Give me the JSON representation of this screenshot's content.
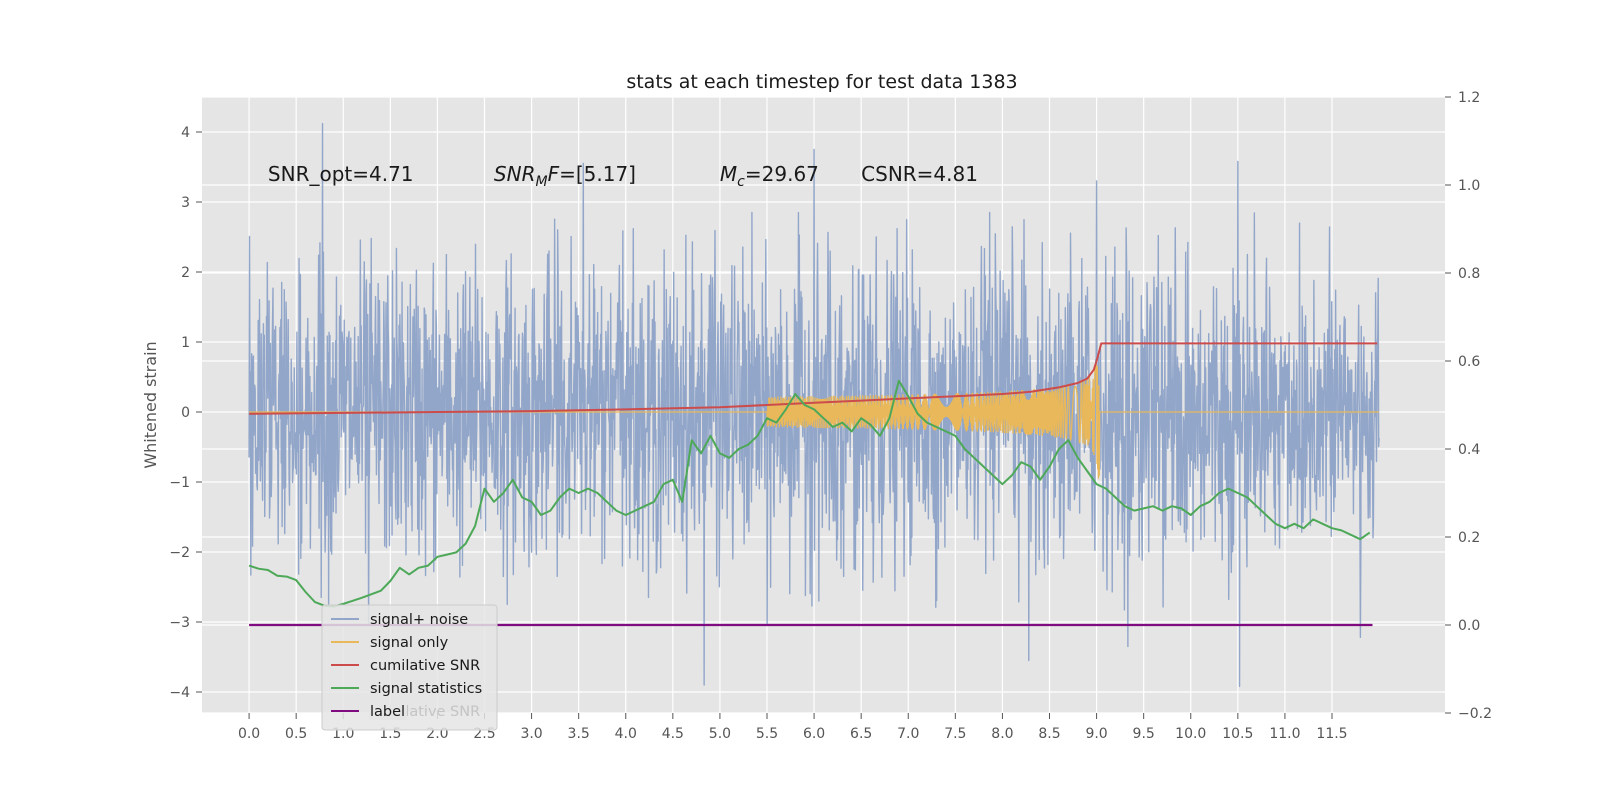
{
  "chart_data": {
    "type": "line",
    "title": "stats at each timestep for test data 1383",
    "ylabel": "Whitened strain",
    "xlabel": "",
    "xlim": [
      -0.5,
      12.7
    ],
    "ylim": [
      -4.3,
      4.5
    ],
    "y2lim": [
      -0.2,
      1.2
    ],
    "x_ticks": [
      "0.0",
      "0.5",
      "1.0",
      "1.5",
      "2.0",
      "2.5",
      "3.0",
      "3.5",
      "4.0",
      "4.5",
      "5.0",
      "5.5",
      "6.0",
      "6.5",
      "7.0",
      "7.5",
      "8.0",
      "8.5",
      "9.0",
      "9.5",
      "10.0",
      "10.5",
      "11.0",
      "11.5"
    ],
    "y_ticks": [
      "−4",
      "−3",
      "−2",
      "−1",
      "0",
      "1",
      "2",
      "3",
      "4"
    ],
    "y2_ticks": [
      "−0.2",
      "0.0",
      "0.2",
      "0.4",
      "0.6",
      "0.8",
      "1.0",
      "1.2"
    ],
    "grid": true,
    "legend_position": "lower-left",
    "annotations": [
      {
        "text": "SNR_opt=4.71",
        "x": 0.2,
        "y": 3.3
      },
      {
        "text": "SNR",
        "sub": "M",
        "rest": "F=[5.17]",
        "x": 2.6,
        "y": 3.3,
        "italic_base": true
      },
      {
        "text": "M",
        "sub": "c",
        "rest": "=29.67",
        "x": 5.0,
        "y": 3.3,
        "italic_base": true
      },
      {
        "text": "CSNR=4.81",
        "x": 6.5,
        "y": 3.3
      }
    ],
    "series": [
      {
        "name": "signal+ noise",
        "color": "#92a6ca",
        "axis": "left",
        "duration": 12.0,
        "noise_std": 1.0,
        "spikes": [
          [
            0.78,
            4.12
          ],
          [
            3.55,
            3.55
          ],
          [
            9.0,
            3.3
          ],
          [
            10.5,
            3.58
          ],
          [
            4.83,
            -3.9
          ],
          [
            10.52,
            -3.92
          ],
          [
            8.28,
            -3.55
          ],
          [
            9.33,
            -3.35
          ],
          [
            1.27,
            -3.05
          ],
          [
            5.5,
            -3.05
          ],
          [
            11.8,
            -3.22
          ],
          [
            6.0,
            3.75
          ]
        ]
      },
      {
        "name": "signal only",
        "color": "#e8b85a",
        "axis": "left",
        "chirp_end": 9.03,
        "peak_amplitude": 1.2
      },
      {
        "name": "cumilative SNR",
        "color": "#cc4b4b",
        "axis": "right",
        "x": [
          0.0,
          1.0,
          2.0,
          3.0,
          4.0,
          5.0,
          5.5,
          6.0,
          6.5,
          7.0,
          7.5,
          8.0,
          8.3,
          8.6,
          8.8,
          8.9,
          8.97,
          9.0,
          9.05,
          11.98
        ],
        "values": [
          0.48,
          0.482,
          0.484,
          0.486,
          0.49,
          0.495,
          0.5,
          0.505,
          0.51,
          0.515,
          0.52,
          0.525,
          0.53,
          0.54,
          0.55,
          0.56,
          0.58,
          0.6,
          0.64,
          0.64
        ]
      },
      {
        "name": "signal statistics",
        "color": "#4da858",
        "axis": "right",
        "x": [
          0.0,
          0.1,
          0.2,
          0.3,
          0.4,
          0.5,
          0.6,
          0.7,
          0.8,
          0.9,
          1.0,
          1.1,
          1.2,
          1.3,
          1.4,
          1.5,
          1.6,
          1.7,
          1.8,
          1.9,
          2.0,
          2.1,
          2.2,
          2.3,
          2.4,
          2.5,
          2.6,
          2.7,
          2.8,
          2.9,
          3.0,
          3.1,
          3.2,
          3.3,
          3.4,
          3.5,
          3.6,
          3.7,
          3.8,
          3.9,
          4.0,
          4.1,
          4.2,
          4.3,
          4.4,
          4.5,
          4.6,
          4.7,
          4.8,
          4.9,
          5.0,
          5.1,
          5.2,
          5.3,
          5.4,
          5.5,
          5.6,
          5.7,
          5.8,
          5.9,
          6.0,
          6.1,
          6.2,
          6.3,
          6.4,
          6.5,
          6.6,
          6.7,
          6.8,
          6.9,
          7.0,
          7.1,
          7.2,
          7.3,
          7.4,
          7.5,
          7.6,
          7.7,
          7.8,
          7.9,
          8.0,
          8.1,
          8.2,
          8.3,
          8.4,
          8.5,
          8.6,
          8.7,
          8.8,
          8.9,
          9.0,
          9.1,
          9.2,
          9.3,
          9.4,
          9.5,
          9.6,
          9.7,
          9.8,
          9.9,
          10.0,
          10.1,
          10.2,
          10.3,
          10.4,
          10.5,
          10.6,
          10.7,
          10.8,
          10.9,
          11.0,
          11.1,
          11.2,
          11.3,
          11.4,
          11.5,
          11.6,
          11.7,
          11.8,
          11.9
        ],
        "values": [
          0.135,
          0.128,
          0.125,
          0.112,
          0.11,
          0.102,
          0.075,
          0.052,
          0.044,
          0.042,
          0.048,
          0.055,
          0.062,
          0.07,
          0.078,
          0.1,
          0.13,
          0.115,
          0.13,
          0.135,
          0.155,
          0.16,
          0.165,
          0.185,
          0.225,
          0.31,
          0.28,
          0.3,
          0.33,
          0.29,
          0.28,
          0.25,
          0.26,
          0.29,
          0.31,
          0.3,
          0.31,
          0.3,
          0.28,
          0.26,
          0.25,
          0.26,
          0.27,
          0.28,
          0.32,
          0.33,
          0.28,
          0.42,
          0.39,
          0.43,
          0.39,
          0.38,
          0.4,
          0.41,
          0.43,
          0.47,
          0.46,
          0.49,
          0.525,
          0.5,
          0.49,
          0.47,
          0.45,
          0.46,
          0.44,
          0.47,
          0.455,
          0.43,
          0.47,
          0.555,
          0.52,
          0.48,
          0.46,
          0.45,
          0.44,
          0.43,
          0.4,
          0.38,
          0.36,
          0.34,
          0.32,
          0.34,
          0.37,
          0.36,
          0.33,
          0.36,
          0.4,
          0.42,
          0.38,
          0.35,
          0.32,
          0.31,
          0.29,
          0.27,
          0.26,
          0.265,
          0.27,
          0.26,
          0.27,
          0.265,
          0.25,
          0.27,
          0.28,
          0.3,
          0.31,
          0.3,
          0.29,
          0.27,
          0.25,
          0.23,
          0.22,
          0.23,
          0.22,
          0.24,
          0.23,
          0.22,
          0.215,
          0.205,
          0.195,
          0.21
        ]
      },
      {
        "name": "label",
        "color": "#800a80",
        "axis": "right",
        "x": [
          0.0,
          11.93
        ],
        "values": [
          0.0,
          0.0
        ]
      }
    ],
    "legend_ghost_text": "cumilative SNR"
  }
}
